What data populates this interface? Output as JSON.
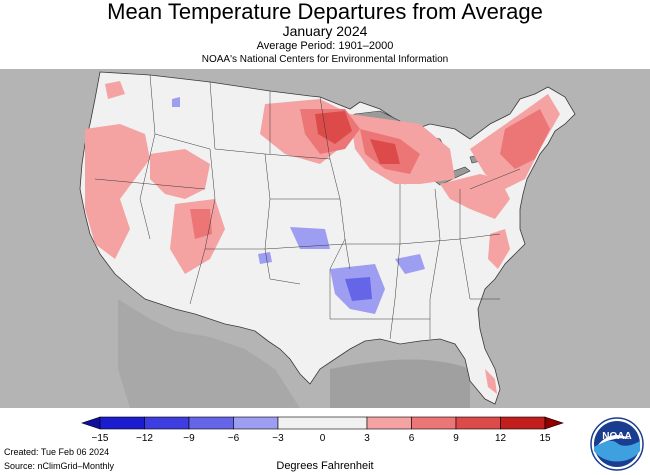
{
  "header": {
    "title": "Mean Temperature Departures from Average",
    "subtitle": "January 2024",
    "period": "Average Period: 1901–2000",
    "org": "NOAA's National Centers for Environmental Information"
  },
  "legend": {
    "ticks": [
      "−15",
      "−12",
      "−9",
      "−6",
      "−3",
      "0",
      "3",
      "6",
      "9",
      "12",
      "15"
    ],
    "bins": [
      {
        "range": [
          -15,
          -12
        ],
        "color": "#1c1ccf"
      },
      {
        "range": [
          -12,
          -9
        ],
        "color": "#3d3de0"
      },
      {
        "range": [
          -9,
          -6
        ],
        "color": "#6565e8"
      },
      {
        "range": [
          -6,
          -3
        ],
        "color": "#9d9df2"
      },
      {
        "range": [
          -3,
          3
        ],
        "color": "#f1f1f1"
      },
      {
        "range": [
          3,
          6
        ],
        "color": "#f4a2a2"
      },
      {
        "range": [
          6,
          9
        ],
        "color": "#ec7676"
      },
      {
        "range": [
          9,
          12
        ],
        "color": "#dc4a4a"
      },
      {
        "range": [
          12,
          15
        ],
        "color": "#c21e1e"
      }
    ],
    "below_color": "#1010a0",
    "above_color": "#900000",
    "units": "Degrees Fahrenheit"
  },
  "footer": {
    "created": "Created: Tue Feb 06 2024",
    "source": "Source: nClimGrid–Monthly"
  },
  "logo": {
    "text": "NOAA",
    "icon": "noaa-logo-icon"
  },
  "colors": {
    "background_land": "#b4b4b4",
    "water": "#9a9a9a",
    "near_normal": "#f1f1f1",
    "borders": "#3a3a3a"
  }
}
